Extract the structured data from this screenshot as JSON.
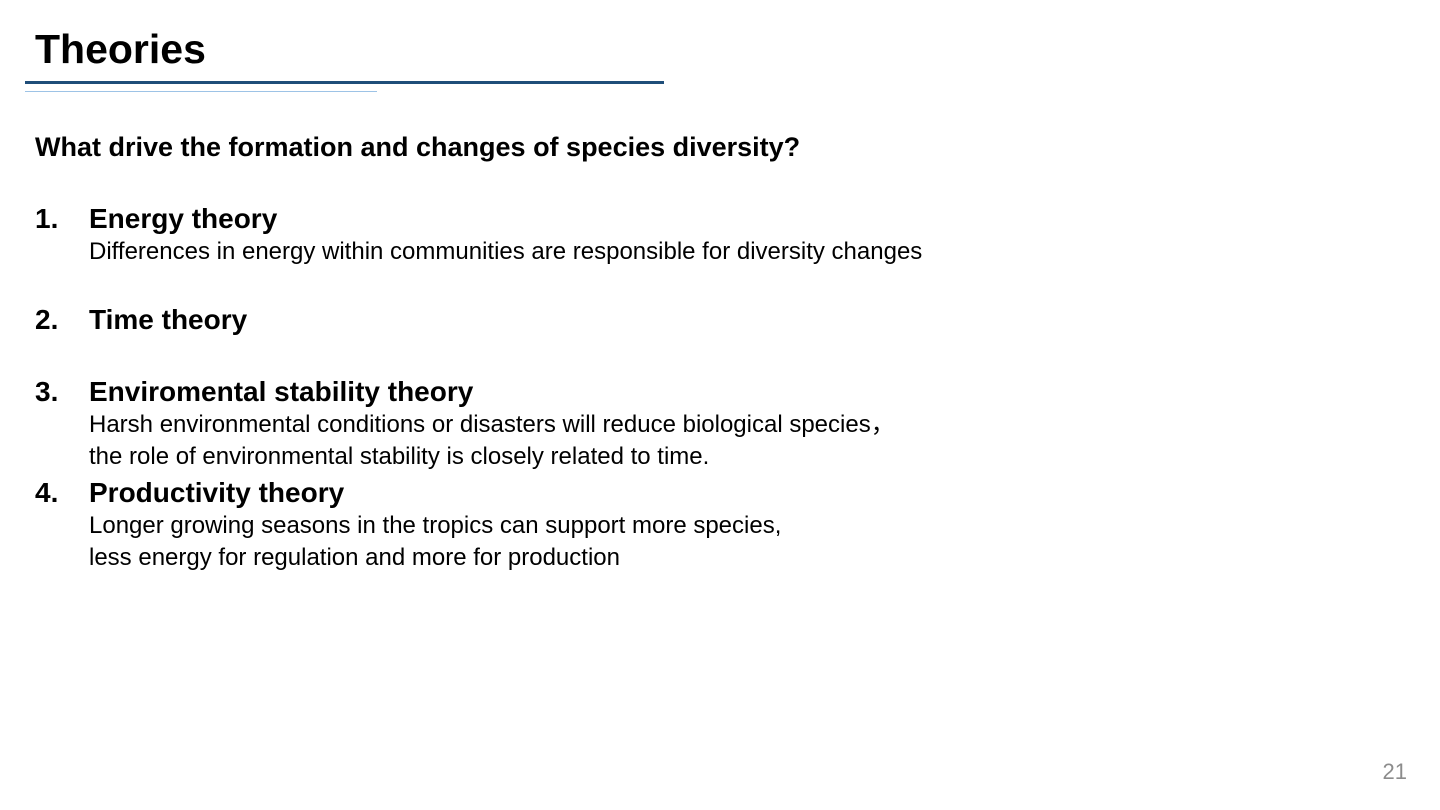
{
  "slide": {
    "title": "Theories",
    "question": "What drive the formation and changes of species diversity?",
    "theories": [
      {
        "number": "1.",
        "name": "Energy theory",
        "description": [
          "Differences in energy within communities are responsible for diversity changes"
        ]
      },
      {
        "number": "2.",
        "name": "Time theory",
        "description": []
      },
      {
        "number": "3.",
        "name": "Enviromental stability theory",
        "description": [
          "Harsh environmental conditions or disasters will reduce biological species，",
          "the role of environmental stability is closely related to time."
        ]
      },
      {
        "number": "4.",
        "name": "Productivity theory",
        "description": [
          "Longer growing seasons in the tropics can support more species,",
          "less energy for regulation and more for production"
        ]
      }
    ],
    "page_number": "21"
  },
  "colors": {
    "title_rule": "#1f4e79",
    "title_rule_secondary": "#9dc3e6",
    "page_number": "#8c8c8c"
  }
}
